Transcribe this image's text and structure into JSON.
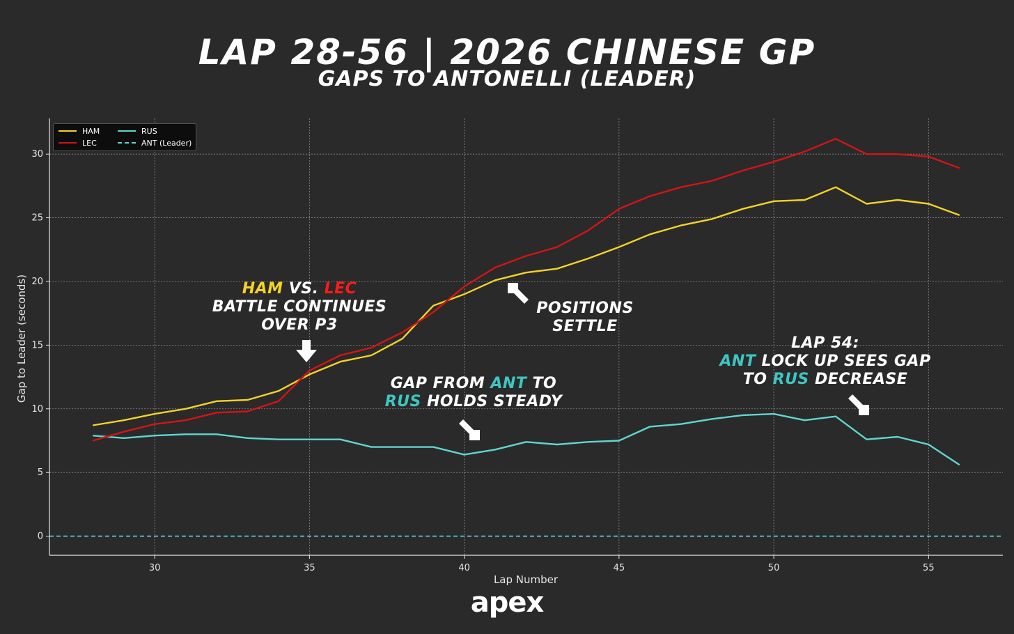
{
  "header": {
    "title": "LAP 28-56 | 2026 CHINESE GP",
    "subtitle": "GAPS TO ANTONELLI (LEADER)"
  },
  "brand": {
    "logo_text": "apex"
  },
  "chart_data": {
    "type": "line",
    "title": "LAP 28-56 | 2026 CHINESE GP",
    "subtitle": "GAPS TO ANTONELLI (LEADER)",
    "xlabel": "Lap Number",
    "ylabel": "Gap to Leader (seconds)",
    "xlim": [
      26.6,
      57.4
    ],
    "ylim": [
      -1.5,
      32.8
    ],
    "xticks": [
      30,
      35,
      40,
      45,
      50,
      55
    ],
    "yticks": [
      0,
      5,
      10,
      15,
      20,
      25,
      30
    ],
    "grid": true,
    "legend_position": "top-left",
    "x": [
      28,
      29,
      30,
      31,
      32,
      33,
      34,
      35,
      36,
      37,
      38,
      39,
      40,
      41,
      42,
      43,
      44,
      45,
      46,
      47,
      48,
      49,
      50,
      51,
      52,
      53,
      54,
      55,
      56
    ],
    "series": [
      {
        "name": "HAM",
        "color": "#f5d327",
        "style": "solid",
        "values": [
          8.7,
          9.1,
          9.6,
          10.0,
          10.6,
          10.7,
          11.4,
          12.7,
          13.7,
          14.2,
          15.5,
          18.1,
          19.0,
          20.1,
          20.7,
          21.0,
          21.8,
          22.7,
          23.7,
          24.4,
          24.9,
          25.7,
          26.3,
          26.4,
          27.4,
          26.1,
          26.4,
          26.1,
          25.2
        ]
      },
      {
        "name": "LEC",
        "color": "#d41414",
        "style": "solid",
        "values": [
          7.5,
          8.2,
          8.8,
          9.1,
          9.7,
          9.8,
          10.6,
          13.0,
          14.2,
          14.8,
          16.0,
          17.6,
          19.6,
          21.1,
          22.0,
          22.7,
          24.0,
          25.7,
          26.7,
          27.4,
          27.9,
          28.7,
          29.4,
          30.2,
          31.2,
          30.0,
          30.0,
          29.8,
          28.9
        ]
      },
      {
        "name": "RUS",
        "color": "#5fd6d2",
        "style": "solid",
        "values": [
          7.9,
          7.7,
          7.9,
          8.0,
          8.0,
          7.7,
          7.6,
          7.6,
          7.6,
          7.0,
          7.0,
          7.0,
          6.4,
          6.8,
          7.4,
          7.2,
          7.4,
          7.5,
          8.6,
          8.8,
          9.2,
          9.5,
          9.6,
          9.1,
          9.4,
          7.6,
          7.8,
          7.2,
          5.6
        ]
      },
      {
        "name": "ANT (Leader)",
        "color": "#5fd6d2",
        "style": "dashed",
        "values": [
          0,
          0,
          0,
          0,
          0,
          0,
          0,
          0,
          0,
          0,
          0,
          0,
          0,
          0,
          0,
          0,
          0,
          0,
          0,
          0,
          0,
          0,
          0,
          0,
          0,
          0,
          0,
          0,
          0
        ]
      }
    ],
    "annotations": [
      {
        "id": "battle",
        "parts": [
          [
            "HAM",
            "ham"
          ],
          [
            " VS. ",
            ""
          ],
          [
            "LEC",
            "lec"
          ]
        ],
        "line2": "BATTLE CONTINUES",
        "line3": "OVER P3"
      },
      {
        "id": "settle",
        "line1": "POSITIONS",
        "line2": "SETTLE"
      },
      {
        "id": "steady",
        "parts": [
          [
            "GAP FROM ",
            ""
          ],
          [
            "ANT",
            "teal"
          ],
          [
            " TO",
            ""
          ]
        ],
        "parts2": [
          [
            "RUS",
            "teal"
          ],
          [
            " HOLDS STEADY",
            ""
          ]
        ]
      },
      {
        "id": "lockup",
        "line1": "LAP 54:",
        "parts": [
          [
            "ANT",
            "teal"
          ],
          [
            " LOCK UP SEES GAP",
            ""
          ]
        ],
        "parts2": [
          [
            "TO ",
            ""
          ],
          [
            "RUS",
            "teal"
          ],
          [
            " DECREASE",
            ""
          ]
        ]
      }
    ]
  }
}
